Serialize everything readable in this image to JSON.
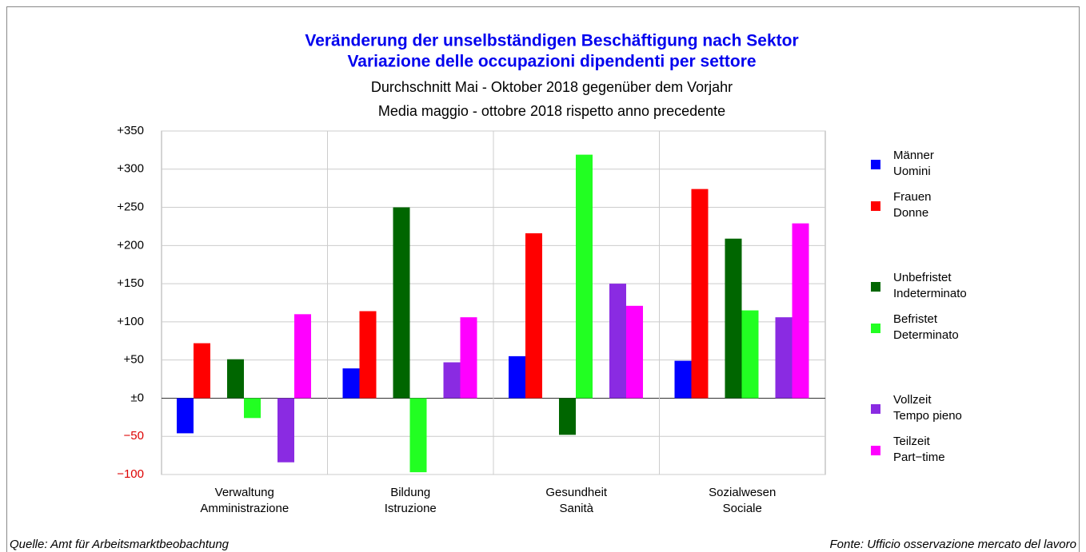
{
  "chart_data": {
    "type": "bar",
    "title": [
      "Veränderung der unselbständigen Beschäftigung nach Sektor",
      "Variazione delle occupazioni dipendenti per settore"
    ],
    "subtitle": [
      "Durchschnitt Mai - Oktober 2018 gegenüber dem Vorjahr",
      "Media maggio - ottobre 2018 rispetto anno precedente"
    ],
    "categories": [
      [
        "Verwaltung",
        "Amministrazione"
      ],
      [
        "Bildung",
        "Istruzione"
      ],
      [
        "Gesundheit",
        "Sanità"
      ],
      [
        "Sozialwesen",
        "Sociale"
      ]
    ],
    "series": [
      {
        "name": [
          "Männer",
          "Uomini"
        ],
        "color": "#0000ff",
        "values": [
          -46,
          39,
          55,
          49
        ]
      },
      {
        "name": [
          "Frauen",
          "Donne"
        ],
        "color": "#ff0000",
        "values": [
          72,
          114,
          216,
          274
        ]
      },
      {
        "name": [
          "Unbefristet",
          "Indeterminato"
        ],
        "color": "#006600",
        "values": [
          51,
          250,
          -48,
          209
        ]
      },
      {
        "name": [
          "Befristet",
          "Determinato"
        ],
        "color": "#22ff22",
        "values": [
          -26,
          -97,
          319,
          115
        ]
      },
      {
        "name": [
          "Vollzeit",
          "Tempo pieno"
        ],
        "color": "#8a2be2",
        "values": [
          -84,
          47,
          150,
          106
        ]
      },
      {
        "name": [
          "Teilzeit",
          "Part−time"
        ],
        "color": "#ff00ff",
        "values": [
          110,
          106,
          121,
          229
        ]
      }
    ],
    "ylim": [
      -100,
      350
    ],
    "yticks": [
      {
        "value": 350,
        "label": "+350"
      },
      {
        "value": 300,
        "label": "+300"
      },
      {
        "value": 250,
        "label": "+250"
      },
      {
        "value": 200,
        "label": "+200"
      },
      {
        "value": 150,
        "label": "+150"
      },
      {
        "value": 100,
        "label": "+100"
      },
      {
        "value": 50,
        "label": "+50"
      },
      {
        "value": 0,
        "label": "±0"
      },
      {
        "value": -50,
        "label": "−50"
      },
      {
        "value": -100,
        "label": "−100"
      }
    ],
    "negative_tick_color": "#dd0000",
    "grid": true,
    "legend": "right",
    "source_left": "Quelle: Amt für Arbeitsmarktbeobachtung",
    "source_right": "Fonte: Ufficio osservazione mercato del lavoro"
  }
}
